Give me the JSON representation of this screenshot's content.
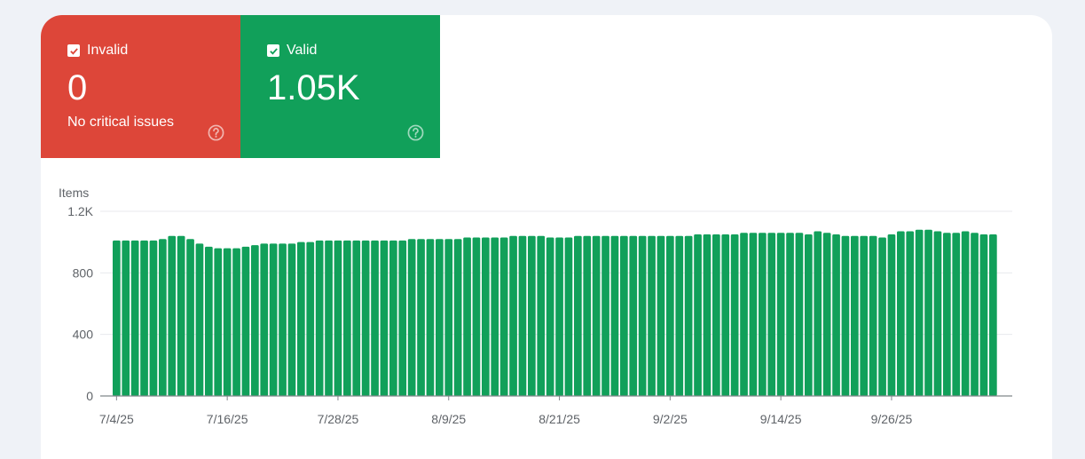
{
  "tiles": {
    "invalid": {
      "label": "Invalid",
      "value": "0",
      "subtitle": "No critical issues",
      "color": "#dd4639"
    },
    "valid": {
      "label": "Valid",
      "value": "1.05K",
      "color": "#11a05a"
    }
  },
  "chart_data": {
    "type": "bar",
    "ylabel": "Items",
    "ylim": [
      0,
      1200
    ],
    "yticks": [
      {
        "value": 0,
        "label": "0"
      },
      {
        "value": 400,
        "label": "400"
      },
      {
        "value": 800,
        "label": "800"
      },
      {
        "value": 1200,
        "label": "1.2K"
      }
    ],
    "xticks": [
      {
        "index": 0,
        "label": "7/4/25"
      },
      {
        "index": 12,
        "label": "7/16/25"
      },
      {
        "index": 24,
        "label": "7/28/25"
      },
      {
        "index": 36,
        "label": "8/9/25"
      },
      {
        "index": 48,
        "label": "8/21/25"
      },
      {
        "index": 60,
        "label": "9/2/25"
      },
      {
        "index": 72,
        "label": "9/14/25"
      },
      {
        "index": 84,
        "label": "9/26/25"
      }
    ],
    "start_date": "2025-07-04",
    "bar_color": "#11a05a",
    "grid": true,
    "series": [
      {
        "values": [
          1010,
          1010,
          1010,
          1010,
          1010,
          1020,
          1040,
          1040,
          1020,
          990,
          970,
          960,
          960,
          960,
          970,
          980,
          990,
          990,
          990,
          990,
          1000,
          1000,
          1010,
          1010,
          1010,
          1010,
          1010,
          1010,
          1010,
          1010,
          1010,
          1010,
          1020,
          1020,
          1020,
          1020,
          1020,
          1020,
          1030,
          1030,
          1030,
          1030,
          1030,
          1040,
          1040,
          1040,
          1040,
          1030,
          1030,
          1030,
          1040,
          1040,
          1040,
          1040,
          1040,
          1040,
          1040,
          1040,
          1040,
          1040,
          1040,
          1040,
          1040,
          1050,
          1050,
          1050,
          1050,
          1050,
          1060,
          1060,
          1060,
          1060,
          1060,
          1060,
          1060,
          1050,
          1070,
          1060,
          1050,
          1040,
          1040,
          1040,
          1040,
          1030,
          1050,
          1070,
          1070,
          1080,
          1080,
          1070,
          1060,
          1060,
          1070,
          1060,
          1050,
          1050
        ]
      }
    ]
  }
}
